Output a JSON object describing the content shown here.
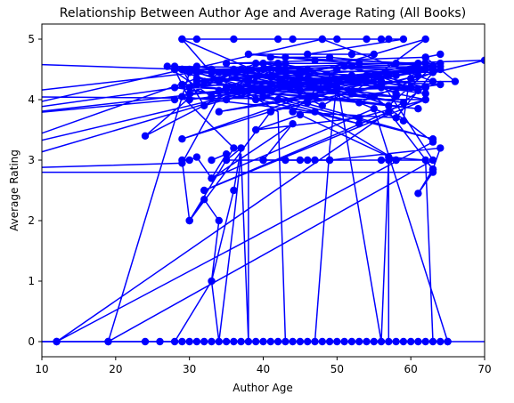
{
  "chart_data": {
    "type": "line",
    "title": "Relationship Between Author Age and Average Rating (All Books)",
    "xlabel": "Author Age",
    "ylabel": "Average Rating",
    "xlim": [
      10,
      70
    ],
    "ylim": [
      -0.25,
      5.25
    ],
    "xticks": [
      10,
      20,
      30,
      40,
      50,
      60,
      70
    ],
    "yticks": [
      0,
      1,
      2,
      3,
      4,
      5
    ],
    "grid": false,
    "legend": "none",
    "series": [
      {
        "color": "#0000ff",
        "marker": "circle",
        "x": [
          5,
          29,
          47,
          52,
          58,
          62,
          2,
          31,
          56,
          40,
          36,
          63,
          28,
          33,
          45,
          61,
          2,
          28,
          39,
          55,
          63,
          12,
          63,
          48,
          30,
          64,
          35,
          56,
          42,
          36,
          47,
          29,
          34,
          42,
          60,
          31,
          2,
          44,
          64,
          53,
          28,
          37,
          62,
          50,
          29,
          61,
          32,
          46,
          2,
          31,
          59,
          38,
          35,
          58,
          30,
          40,
          54,
          63,
          27,
          33,
          44,
          52,
          62,
          2,
          29,
          36,
          49,
          57,
          63,
          31,
          43,
          24,
          34,
          52,
          61,
          33,
          46,
          39,
          28,
          57,
          47,
          34,
          56,
          63,
          19,
          30,
          64,
          40,
          53,
          31,
          47,
          37,
          41,
          63,
          58,
          30,
          62,
          43,
          54,
          29,
          62,
          35,
          50,
          44,
          58,
          63,
          29,
          32,
          45,
          59,
          60,
          35,
          38,
          51,
          62,
          34,
          46,
          64,
          31,
          42,
          56,
          62,
          38,
          48,
          55,
          30,
          28,
          50,
          66,
          62,
          60,
          70,
          33,
          43,
          52,
          61,
          41,
          30,
          36,
          29,
          47,
          58,
          45,
          39,
          53,
          62,
          32,
          57,
          63,
          64,
          49,
          40,
          44,
          33,
          55,
          65,
          2
        ],
        "y": [
          4.6,
          4.5,
          4.3,
          4.4,
          4.1,
          4.0,
          4.05,
          4.45,
          4.25,
          4.5,
          4.2,
          3.35,
          4.55,
          4.45,
          4.15,
          4.5,
          3.7,
          4.0,
          4.6,
          4.05,
          3.3,
          0.0,
          4.3,
          5.0,
          4.5,
          4.55,
          4.2,
          4.3,
          4.5,
          4.15,
          4.05,
          5.0,
          4.3,
          4.6,
          4.2,
          4.35,
          3.1,
          4.3,
          4.5,
          3.95,
          4.5,
          4.15,
          4.5,
          4.2,
          4.25,
          3.85,
          4.3,
          4.5,
          3.75,
          4.55,
          3.95,
          4.3,
          4.45,
          4.05,
          4.2,
          4.6,
          4.3,
          4.5,
          4.55,
          4.05,
          4.3,
          4.1,
          5.0,
          2.85,
          2.95,
          4.5,
          4.25,
          3.9,
          4.55,
          4.3,
          4.6,
          3.4,
          4.45,
          4.55,
          4.15,
          4.5,
          4.35,
          4.0,
          4.2,
          4.4,
          4.05,
          3.8,
          4.3,
          3.0,
          0.0,
          4.45,
          4.6,
          4.05,
          3.6,
          4.25,
          4.2,
          4.5,
          4.15,
          4.55,
          4.4,
          4.1,
          4.2,
          4.45,
          4.4,
          3.35,
          4.6,
          4.0,
          4.5,
          3.8,
          3.7,
          4.45,
          4.5,
          3.9,
          4.35,
          3.65,
          4.5,
          4.2,
          4.35,
          4.55,
          4.2,
          4.15,
          3.95,
          4.25,
          4.45,
          4.0,
          4.2,
          4.1,
          4.5,
          3.9,
          4.4,
          4.0,
          4.5,
          4.3,
          4.3,
          4.7,
          4.35,
          4.65,
          4.5,
          4.25,
          4.1,
          4.4,
          3.8,
          2.0,
          3.2,
          4.05,
          3.8,
          3.0,
          3.75,
          3.5,
          3.7,
          4.0,
          2.5,
          3.8,
          2.85,
          3.2,
          3.0,
          3.0,
          3.6,
          2.7,
          3.85,
          0.0,
          0.0
        ]
      },
      {
        "color": "#0000ff",
        "marker": "circle",
        "x": [
          44,
          48,
          54,
          57,
          29,
          31,
          36,
          42,
          50,
          56,
          59,
          46,
          52,
          55,
          38,
          47,
          53,
          61,
          41,
          43,
          49,
          58,
          35,
          62,
          64
        ],
        "y": [
          5.0,
          5.0,
          5.0,
          5.0,
          5.0,
          5.0,
          5.0,
          5.0,
          5.0,
          5.0,
          5.0,
          4.75,
          4.75,
          4.75,
          4.75,
          4.65,
          4.6,
          4.6,
          4.7,
          4.7,
          4.7,
          4.6,
          4.6,
          4.7,
          4.75
        ]
      },
      {
        "color": "#0000ff",
        "marker": "circle",
        "x": [
          33,
          35,
          33,
          31,
          30,
          29,
          30,
          32,
          34,
          33,
          36,
          37,
          35,
          40,
          45,
          47,
          46,
          49,
          43,
          56,
          57,
          58,
          57,
          62,
          63,
          61,
          63,
          2
        ],
        "y": [
          3.0,
          3.1,
          2.7,
          3.05,
          3.0,
          3.0,
          2.0,
          2.35,
          2.0,
          1.0,
          2.5,
          3.2,
          3.0,
          3.0,
          3.0,
          3.0,
          3.0,
          3.0,
          3.0,
          3.0,
          3.0,
          3.0,
          3.05,
          3.0,
          2.85,
          2.45,
          2.8,
          2.8
        ]
      },
      {
        "color": "#0000ff",
        "marker": "circle",
        "x": [
          2,
          12,
          19,
          24,
          26,
          28,
          29,
          30,
          31,
          32,
          33,
          34,
          35,
          36,
          37,
          38,
          39,
          40,
          41,
          42,
          43,
          44,
          45,
          46,
          47,
          48,
          49,
          50,
          51,
          52,
          53,
          54,
          55,
          56,
          57,
          58,
          59,
          60,
          61,
          62,
          63,
          64,
          65,
          75
        ],
        "y": [
          0,
          0,
          0,
          0,
          0,
          0,
          0,
          0,
          0,
          0,
          0,
          0,
          0,
          0,
          0,
          0,
          0,
          0,
          0,
          0,
          0,
          0,
          0,
          0,
          0,
          0,
          0,
          0,
          0,
          0,
          0,
          0,
          0,
          0,
          0,
          0,
          0,
          0,
          0,
          0,
          0,
          0,
          0,
          0
        ]
      },
      {
        "color": "#0000ff",
        "marker": "none",
        "x": [
          28,
          33,
          34,
          36,
          37,
          38,
          38,
          42,
          43,
          47,
          49,
          50,
          56,
          57,
          57,
          63,
          62,
          57
        ],
        "y": [
          0.0,
          1.0,
          0.0,
          2.0,
          3.1,
          0.0,
          4.1,
          3.8,
          0.0,
          0.0,
          3.2,
          4.3,
          0.0,
          3.0,
          0.0,
          0.0,
          3.0,
          3.0
        ]
      }
    ]
  }
}
